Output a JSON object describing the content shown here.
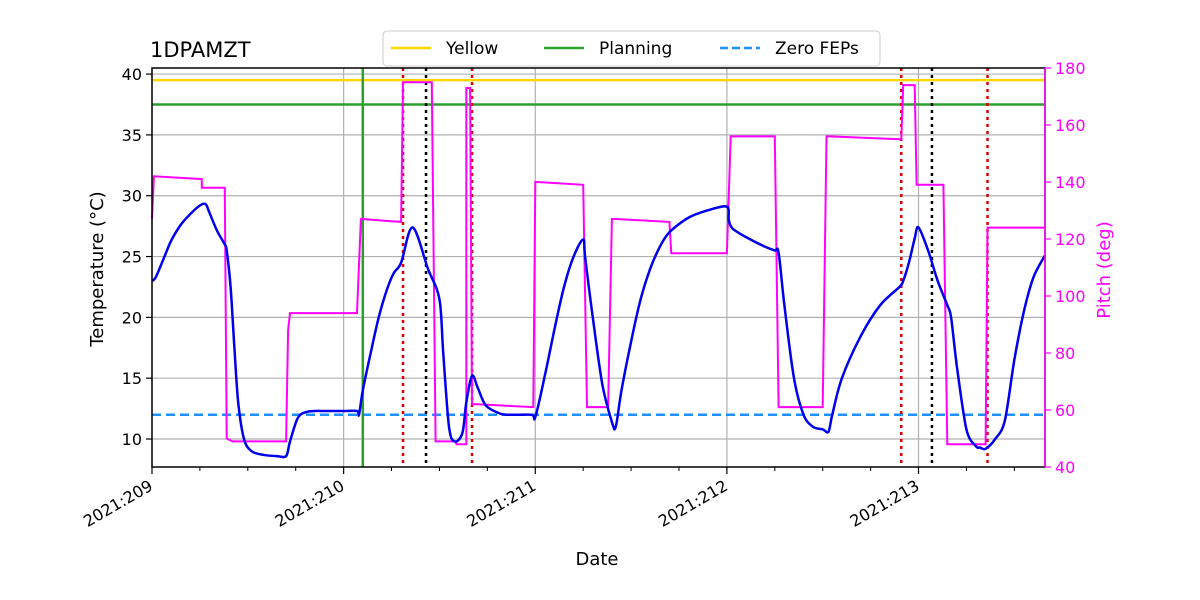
{
  "chart_data": {
    "type": "line",
    "title": "1DPAMZT",
    "xlabel": "Date",
    "ylabel": "Temperature ($^\\circ$C)",
    "ylabel_display": "Temperature (°C)",
    "y2label": "Pitch (deg)",
    "xlim": [
      209.0,
      213.66
    ],
    "ylim": [
      7.7,
      40.5
    ],
    "y2lim": [
      40,
      180
    ],
    "x_ticks": [
      209,
      210,
      211,
      212,
      213
    ],
    "x_tick_labels": [
      "2021:209",
      "2021:210",
      "2021:211",
      "2021:212",
      "2021:213"
    ],
    "y_ticks": [
      10,
      15,
      20,
      25,
      30,
      35,
      40
    ],
    "y2_ticks": [
      40,
      60,
      80,
      100,
      120,
      140,
      160,
      180
    ],
    "grid": true,
    "legend": {
      "placement": "top-center",
      "entries": [
        "Yellow",
        "Planning",
        "Zero FEPs"
      ]
    },
    "colors": {
      "temperature": "#0000ee",
      "pitch": "#ff00ff",
      "yellow": "#ffd700",
      "planning": "#2ca02c",
      "zero_feps": "#1e90ff",
      "red_vlines": "#dd0000",
      "black_vlines": "#000000",
      "grid": "#b0b0b0"
    },
    "series": [
      {
        "name": "Yellow",
        "style": "solid",
        "axis": "left",
        "x": [
          209.0,
          213.66
        ],
        "values": [
          39.5,
          39.5
        ]
      },
      {
        "name": "Planning",
        "style": "solid",
        "axis": "left",
        "x": [
          209.0,
          213.66
        ],
        "values": [
          37.5,
          37.5
        ]
      },
      {
        "name": "Zero FEPs",
        "style": "dashed",
        "axis": "left",
        "x": [
          209.0,
          213.66
        ],
        "values": [
          12.0,
          12.0
        ]
      },
      {
        "name": "1DPAMZT",
        "axis": "left",
        "x": [
          209.0,
          209.02,
          209.06,
          209.1,
          209.15,
          209.2,
          209.25,
          209.28,
          209.3,
          209.34,
          209.38,
          209.39,
          209.41,
          209.43,
          209.45,
          209.48,
          209.52,
          209.58,
          209.65,
          209.7,
          209.72,
          209.76,
          209.8,
          209.85,
          209.9,
          210.0,
          210.07,
          210.08,
          210.1,
          210.14,
          210.18,
          210.22,
          210.26,
          210.3,
          210.36,
          210.44,
          210.5,
          210.52,
          210.55,
          210.58,
          210.62,
          210.64,
          210.67,
          210.7,
          210.74,
          210.8,
          210.85,
          210.98,
          211.0,
          211.05,
          211.1,
          211.15,
          211.2,
          211.25,
          211.26,
          211.3,
          211.35,
          211.4,
          211.42,
          211.45,
          211.5,
          211.55,
          211.6,
          211.65,
          211.7,
          211.8,
          211.9,
          212.0,
          212.01,
          212.03,
          212.1,
          212.2,
          212.25,
          212.27,
          212.3,
          212.35,
          212.4,
          212.45,
          212.5,
          212.53,
          212.55,
          212.6,
          212.7,
          212.8,
          212.9,
          212.92,
          212.95,
          212.98,
          213.0,
          213.05,
          213.1,
          213.15,
          213.17,
          213.2,
          213.25,
          213.3,
          213.32,
          213.35,
          213.4,
          213.45,
          213.5,
          213.55,
          213.6,
          213.66
        ],
        "values": [
          23.0,
          23.3,
          24.8,
          26.3,
          27.6,
          28.5,
          29.2,
          29.3,
          28.6,
          27.1,
          26.0,
          25.5,
          22.5,
          17.5,
          13.0,
          10.0,
          9.0,
          8.7,
          8.6,
          8.6,
          9.8,
          11.7,
          12.2,
          12.3,
          12.3,
          12.3,
          12.3,
          12.0,
          14.0,
          17.0,
          19.8,
          22.0,
          23.6,
          24.5,
          27.4,
          24.0,
          21.5,
          17.0,
          11.0,
          9.8,
          10.5,
          13.0,
          15.2,
          14.2,
          12.8,
          12.2,
          12.0,
          12.0,
          11.8,
          15.2,
          19.0,
          22.5,
          25.0,
          26.4,
          25.0,
          20.0,
          14.5,
          11.4,
          11.0,
          14.0,
          18.0,
          21.5,
          24.0,
          25.8,
          27.0,
          28.2,
          28.8,
          29.1,
          28.0,
          27.3,
          26.6,
          25.8,
          25.5,
          25.3,
          21.0,
          15.0,
          12.0,
          11.0,
          10.8,
          10.6,
          12.0,
          15.0,
          18.5,
          21.0,
          22.5,
          23.0,
          24.5,
          26.5,
          27.4,
          25.5,
          23.0,
          21.0,
          20.0,
          16.0,
          10.8,
          9.4,
          9.3,
          9.2,
          10.0,
          11.5,
          16.5,
          20.5,
          23.3,
          25.1
        ]
      },
      {
        "name": "Pitch",
        "axis": "right",
        "x": [
          209.0,
          209.01,
          209.26,
          209.26,
          209.38,
          209.38,
          209.39,
          209.42,
          209.7,
          209.71,
          209.72,
          210.07,
          210.09,
          210.3,
          210.31,
          210.46,
          210.48,
          210.58,
          210.59,
          210.64,
          210.64,
          210.66,
          210.67,
          210.68,
          210.69,
          210.7,
          210.99,
          211.0,
          211.01,
          211.25,
          211.27,
          211.38,
          211.4,
          211.42,
          211.7,
          211.71,
          212.0,
          212.02,
          212.25,
          212.27,
          212.5,
          212.52,
          212.54,
          212.91,
          212.92,
          212.98,
          212.99,
          213.13,
          213.15,
          213.35,
          213.36,
          213.66
        ],
        "values": [
          127,
          142,
          141,
          138,
          138,
          137,
          50,
          49,
          49,
          88,
          94,
          94,
          127,
          126,
          175,
          175,
          49,
          49,
          48,
          48,
          173,
          173,
          62,
          62,
          62,
          62,
          61,
          140,
          140,
          139,
          61,
          61,
          127,
          127,
          126,
          115,
          115,
          156,
          156,
          61,
          61,
          156,
          156,
          155,
          174,
          174,
          139,
          139,
          48,
          48,
          124,
          124
        ]
      }
    ],
    "vlines": [
      {
        "name": "Planning",
        "x": 210.1,
        "style": "solid",
        "color": "#2ca02c"
      },
      {
        "name": "red-1",
        "x": 210.31,
        "style": "dotted",
        "color": "#dd0000"
      },
      {
        "name": "black-1",
        "x": 210.43,
        "style": "dotted",
        "color": "#000000"
      },
      {
        "name": "red-2",
        "x": 210.67,
        "style": "dotted",
        "color": "#dd0000"
      },
      {
        "name": "red-3",
        "x": 212.91,
        "style": "dotted",
        "color": "#dd0000"
      },
      {
        "name": "black-2",
        "x": 213.07,
        "style": "dotted",
        "color": "#000000"
      },
      {
        "name": "red-4",
        "x": 213.36,
        "style": "dotted",
        "color": "#dd0000"
      }
    ]
  }
}
